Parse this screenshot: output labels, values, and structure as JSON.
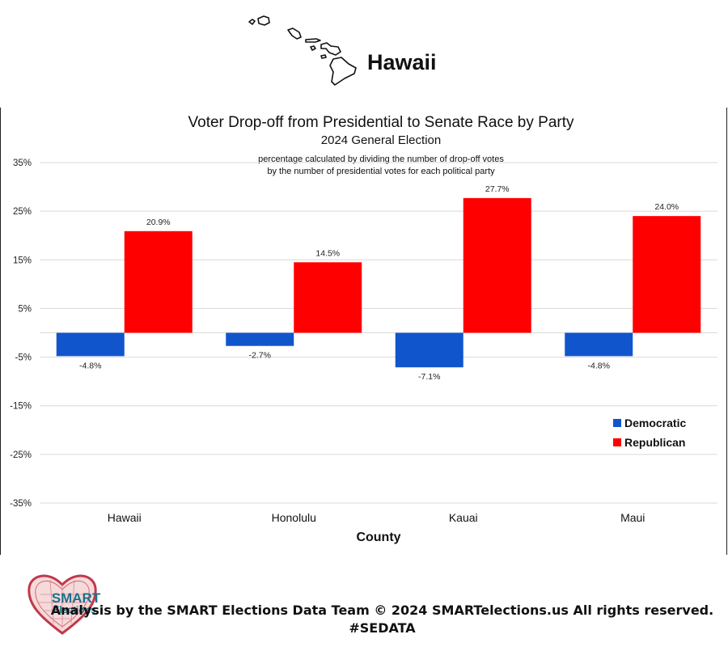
{
  "header": {
    "state_name": "Hawaii"
  },
  "chart_data": {
    "type": "bar",
    "title": "Voter Drop-off from Presidential to Senate Race by Party",
    "subtitle": "2024 General Election",
    "note_line1": "percentage calculated by dividing the number of drop-off votes",
    "note_line2": "by the number of presidential votes for each political party",
    "xlabel": "County",
    "ylabel": "",
    "categories": [
      "Hawaii",
      "Honolulu",
      "Kauai",
      "Maui"
    ],
    "series": [
      {
        "name": "Democratic",
        "color": "#1155cc",
        "values": [
          -4.8,
          -2.7,
          -7.1,
          -4.8
        ],
        "labels": [
          "-4.8%",
          "-2.7%",
          "-7.1%",
          "-4.8%"
        ]
      },
      {
        "name": "Republican",
        "color": "#ff0000",
        "values": [
          20.9,
          14.5,
          27.7,
          24.0
        ],
        "labels": [
          "20.9%",
          "14.5%",
          "27.7%",
          "24.0%"
        ]
      }
    ],
    "ylim": [
      -35,
      35
    ],
    "yticks": [
      35,
      25,
      15,
      5,
      -5,
      -15,
      -25,
      -35
    ],
    "ytick_labels": [
      "35%",
      "25%",
      "15%",
      "5%",
      "-5%",
      "-15%",
      "-25%",
      "-35%"
    ],
    "grid": true,
    "legend_position": "bottom-right"
  },
  "footer": {
    "logo_line1": "SMART",
    "logo_line2": "Elections",
    "credit": "Analysis by the SMART Elections Data Team © 2024 SMARTelections.us All rights reserved.",
    "hashtag": "#SEDATA"
  }
}
